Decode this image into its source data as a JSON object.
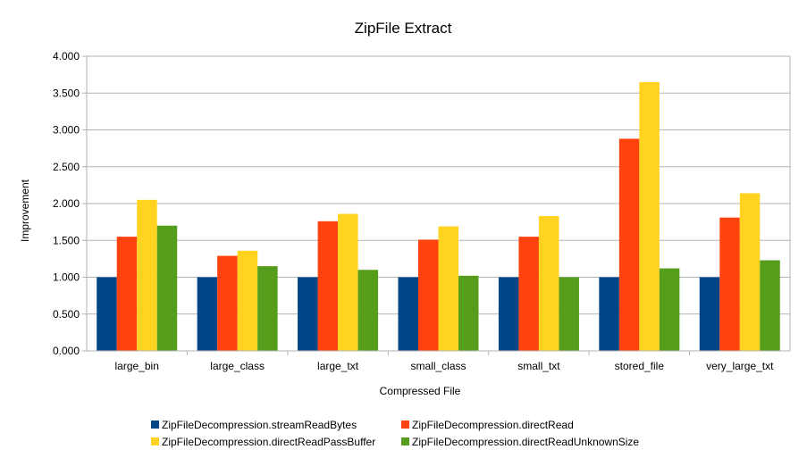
{
  "chart_data": {
    "type": "bar",
    "title": "ZipFile Extract",
    "xlabel": "Compressed File",
    "ylabel": "Improvement",
    "ylim": [
      0,
      4
    ],
    "ytick_step": 0.5,
    "ytick_labels": [
      "0.000",
      "0.500",
      "1.000",
      "1.500",
      "2.000",
      "2.500",
      "3.000",
      "3.500",
      "4.000"
    ],
    "grid": true,
    "legend_position": "bottom",
    "categories": [
      "large_bin",
      "large_class",
      "large_txt",
      "small_class",
      "small_txt",
      "stored_file",
      "very_large_txt"
    ],
    "series": [
      {
        "name": "ZipFileDecompression.streamReadBytes",
        "color": "#004586",
        "values": [
          1.0,
          1.0,
          1.0,
          1.0,
          1.0,
          1.0,
          1.0
        ]
      },
      {
        "name": "ZipFileDecompression.directRead",
        "color": "#ff420e",
        "values": [
          1.55,
          1.29,
          1.76,
          1.51,
          1.55,
          2.88,
          1.81
        ]
      },
      {
        "name": "ZipFileDecompression.directReadPassBuffer",
        "color": "#ffd320",
        "values": [
          2.05,
          1.36,
          1.86,
          1.69,
          1.83,
          3.65,
          2.14
        ]
      },
      {
        "name": "ZipFileDecompression.directReadUnknownSize",
        "color": "#579d1c",
        "values": [
          1.7,
          1.15,
          1.1,
          1.02,
          1.0,
          1.12,
          1.23
        ]
      }
    ]
  }
}
